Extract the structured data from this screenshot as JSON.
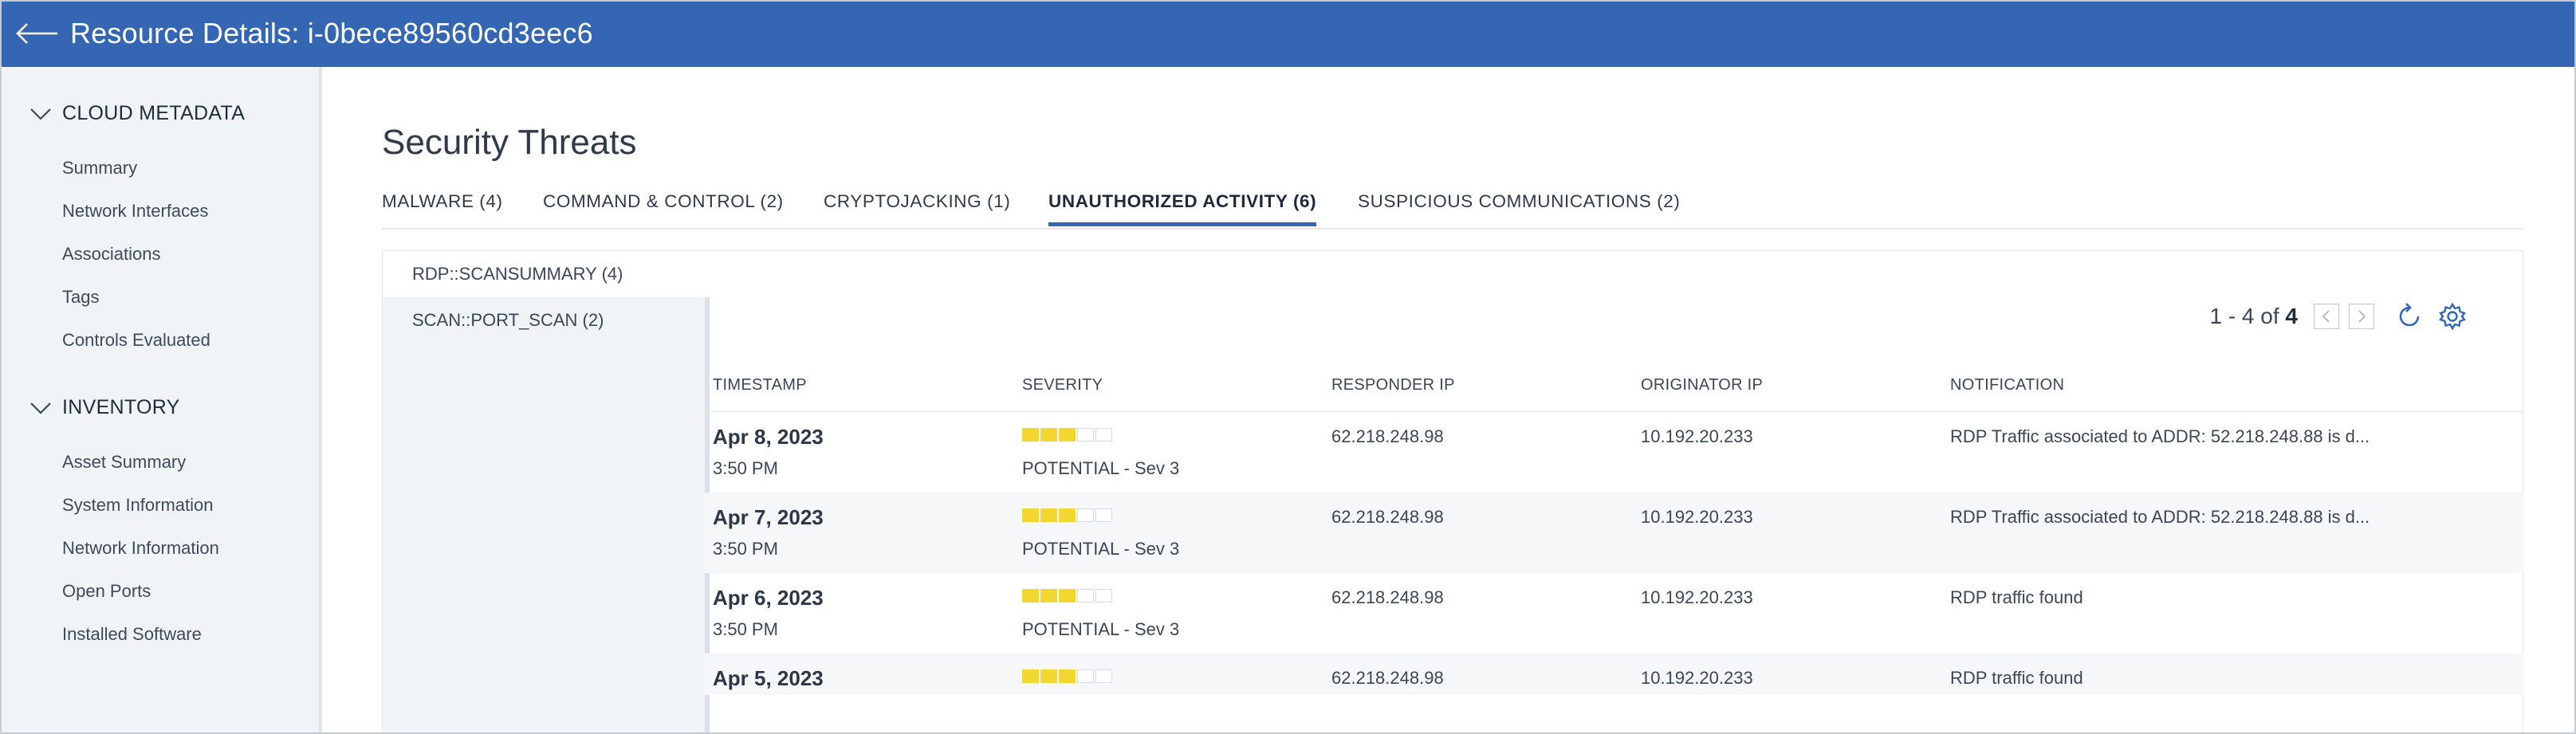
{
  "header": {
    "title": "Resource Details: i-0bece89560cd3eec6",
    "back_icon": "arrow-left-icon"
  },
  "sidebar": {
    "sections": [
      {
        "title": "CLOUD METADATA",
        "items": [
          "Summary",
          "Network Interfaces",
          "Associations",
          "Tags",
          "Controls Evaluated"
        ]
      },
      {
        "title": "INVENTORY",
        "items": [
          "Asset Summary",
          "System Information",
          "Network Information",
          "Open Ports",
          "Installed Software"
        ]
      }
    ]
  },
  "main": {
    "title": "Security Threats",
    "tabs": [
      "MALWARE (4)",
      "COMMAND & CONTROL (2)",
      "CRYPTOJACKING (1)",
      "UNAUTHORIZED ACTIVITY (6)",
      "SUSPICIOUS COMMUNICATIONS (2)"
    ],
    "active_tab": "UNAUTHORIZED ACTIVITY (6)",
    "categories": [
      "RDP::SCANSUMMARY (4)",
      "SCAN::PORT_SCAN (2)"
    ],
    "pager": {
      "range": "1 - 4 of",
      "total": "4"
    },
    "columns": [
      "TIMESTAMP",
      "SEVERITY",
      "RESPONDER IP",
      "ORIGINATOR IP",
      "NOTIFICATION"
    ],
    "rows": [
      {
        "date": "Apr 8, 2023",
        "time": "3:50 PM",
        "severity_level": 3,
        "severity_max": 5,
        "severity_text": "POTENTIAL - Sev 3",
        "responder_ip": "62.218.248.98",
        "originator_ip": "10.192.20.233",
        "notification": "RDP Traffic associated to ADDR: 52.218.248.88 is d..."
      },
      {
        "date": "Apr 7, 2023",
        "time": "3:50 PM",
        "severity_level": 3,
        "severity_max": 5,
        "severity_text": "POTENTIAL - Sev 3",
        "responder_ip": "62.218.248.98",
        "originator_ip": "10.192.20.233",
        "notification": "RDP Traffic associated to ADDR: 52.218.248.88 is d..."
      },
      {
        "date": "Apr 6, 2023",
        "time": "3:50 PM",
        "severity_level": 3,
        "severity_max": 5,
        "severity_text": "POTENTIAL - Sev 3",
        "responder_ip": "62.218.248.98",
        "originator_ip": "10.192.20.233",
        "notification": "RDP traffic found"
      },
      {
        "date": "Apr 5, 2023",
        "time": "",
        "severity_level": 3,
        "severity_max": 5,
        "severity_text": "",
        "responder_ip": "62.218.248.98",
        "originator_ip": "10.192.20.233",
        "notification": "RDP traffic found"
      }
    ]
  },
  "colors": {
    "header": "#3466b3",
    "accent": "#3466b3",
    "severity": "#f2d632",
    "sidebar_bg": "#f1f4f7"
  }
}
